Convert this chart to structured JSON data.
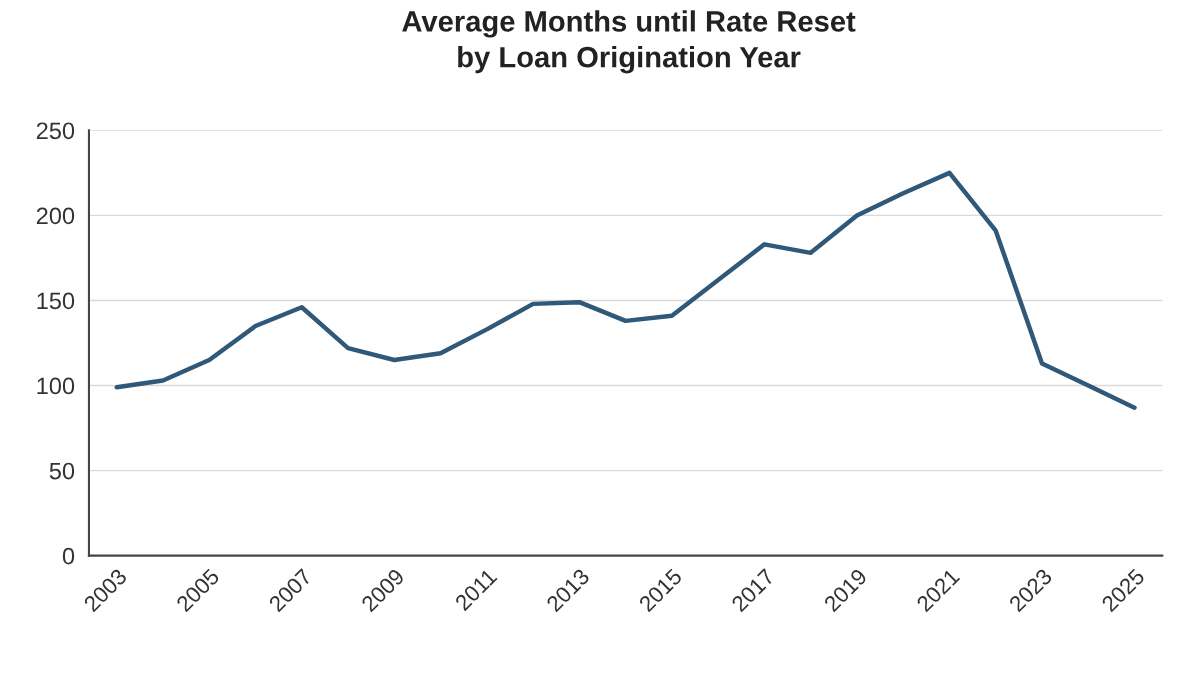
{
  "chart_data": {
    "type": "line",
    "title": "Average Months until Rate Reset\nby Loan Origination Year",
    "categories": [
      "2003",
      null,
      "2005",
      null,
      "2007",
      null,
      "2009",
      null,
      "2011",
      null,
      "2013",
      null,
      "2015",
      null,
      "2017",
      null,
      "2019",
      null,
      "2021",
      null,
      "2023",
      null,
      "2025"
    ],
    "series": [
      {
        "color": "#2f5879",
        "values": [
          99,
          103,
          115,
          135,
          146,
          122,
          115,
          119,
          133,
          148,
          149,
          138,
          141,
          162,
          183,
          178,
          200,
          213,
          225,
          191,
          113,
          100,
          87
        ]
      }
    ],
    "ylim": [
      0,
      250
    ],
    "yticks": [
      0,
      50,
      100,
      150,
      200,
      250
    ],
    "grid": "y",
    "marker": "none",
    "line_style": "solid"
  }
}
